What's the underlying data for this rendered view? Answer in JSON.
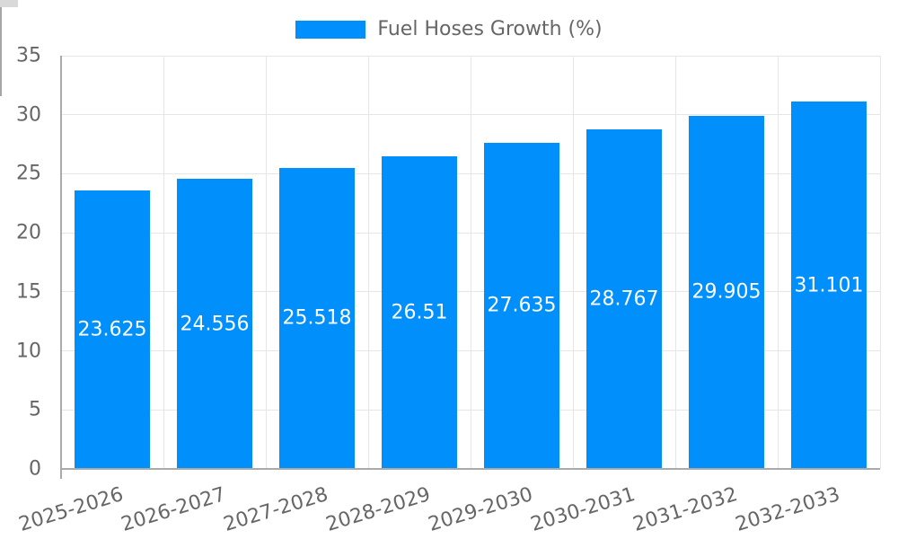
{
  "chart_data": {
    "type": "bar",
    "title": "",
    "series_name": "Fuel Hoses Growth (%)",
    "legend_position": "top",
    "categories": [
      "2025-2026",
      "2026-2027",
      "2027-2028",
      "2028-2029",
      "2029-2030",
      "2030-2031",
      "2031-2032",
      "2032-2033"
    ],
    "values": [
      23.625,
      24.556,
      25.518,
      26.51,
      27.635,
      28.767,
      29.905,
      31.101
    ],
    "data_labels": [
      "23.625",
      "24.556",
      "25.518",
      "26.51",
      "27.635",
      "28.767",
      "29.905",
      "31.101"
    ],
    "ylim": [
      0,
      35
    ],
    "yticks": [
      0,
      5,
      10,
      15,
      20,
      25,
      30,
      35
    ],
    "grid": true,
    "xlabel": "",
    "ylabel": "",
    "colors": {
      "bar": "#008FFB",
      "data_label_text": "#ffffff",
      "axis_text": "#666666",
      "gridline": "#e6e6e6",
      "axis_line": "#aaaaaa"
    }
  }
}
